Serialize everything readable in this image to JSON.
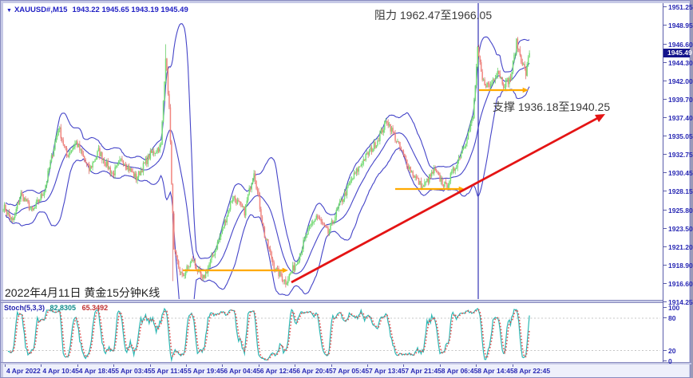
{
  "symbol_bar": {
    "dropdown_icon": "▼",
    "symbol": "XAUUSD#,M15",
    "ohlc_text": "1943.22 1945.65 1943.19 1945.49"
  },
  "annotations": {
    "resistance": "阻力 1962.47至1966.05",
    "support": "支撑 1936.18至1940.25",
    "date_label": "2022年4月11日 黄金15分钟K线"
  },
  "price_axis": {
    "ticks": [
      "1951.25",
      "1948.95",
      "1946.60",
      "1944.30",
      "1942.00",
      "1939.70",
      "1937.40",
      "1935.05",
      "1932.75",
      "1930.45",
      "1928.15",
      "1925.80",
      "1923.50",
      "1921.20",
      "1918.90",
      "1916.60",
      "1914.25"
    ],
    "current": "1945.49"
  },
  "time_axis": {
    "ticks": [
      "4 Apr 2022",
      "4 Apr 10:45",
      "4 Apr 18:45",
      "5 Apr 03:45",
      "5 Apr 11:45",
      "5 Apr 19:45",
      "6 Apr 04:45",
      "6 Apr 12:45",
      "6 Apr 20:45",
      "7 Apr 05:45",
      "7 Apr 13:45",
      "7 Apr 21:45",
      "8 Apr 06:45",
      "8 Apr 14:45",
      "8 Apr 22:45"
    ]
  },
  "stoch": {
    "label": "Stoch(5,3,3)",
    "value_main": "82.8305",
    "value_signal": "65.3492",
    "axis_ticks": [
      "100",
      "80",
      "20",
      "0"
    ],
    "levels": [
      80,
      20
    ]
  },
  "chart_data": {
    "type": "candlestick",
    "title": "XAUUSD#,M15 gold 15-minute chart with Bollinger Bands",
    "current_bar_ohlc": {
      "open": 1943.22,
      "high": 1945.65,
      "low": 1943.19,
      "close": 1945.49
    },
    "ylim": [
      1914.65,
      1952.05
    ],
    "y_ticks": [
      1951.25,
      1948.95,
      1946.6,
      1944.3,
      1942.0,
      1939.7,
      1937.4,
      1935.05,
      1932.75,
      1930.45,
      1928.15,
      1925.8,
      1923.5,
      1921.2,
      1918.9,
      1916.6,
      1914.25
    ],
    "x_ticks": [
      "4 Apr 2022",
      "4 Apr 10:45",
      "4 Apr 18:45",
      "5 Apr 03:45",
      "5 Apr 11:45",
      "5 Apr 19:45",
      "6 Apr 04:45",
      "6 Apr 12:45",
      "6 Apr 20:45",
      "7 Apr 05:45",
      "7 Apr 13:45",
      "7 Apr 21:45",
      "8 Apr 06:45",
      "8 Apr 14:45",
      "8 Apr 22:45"
    ],
    "resistance_zone": [
      1962.47,
      1966.05
    ],
    "support_zone": [
      1936.18,
      1940.25
    ],
    "overlays": [
      "Bollinger Bands 20,2",
      "Stochastic 5,3,3"
    ],
    "num_candles": 448,
    "price_path_anchors": [
      [
        0,
        1926.3
      ],
      [
        8,
        1924.3
      ],
      [
        15,
        1927.8
      ],
      [
        25,
        1925.6
      ],
      [
        35,
        1928.3
      ],
      [
        47,
        1936.3
      ],
      [
        54,
        1932.6
      ],
      [
        62,
        1934.3
      ],
      [
        73,
        1930.8
      ],
      [
        81,
        1933.2
      ],
      [
        93,
        1930.3
      ],
      [
        101,
        1932.2
      ],
      [
        113,
        1929.8
      ],
      [
        125,
        1932.8
      ],
      [
        134,
        1933.8
      ],
      [
        138,
        1945.2
      ],
      [
        141,
        1938.5
      ],
      [
        145,
        1920.5
      ],
      [
        152,
        1917.4
      ],
      [
        161,
        1919.6
      ],
      [
        169,
        1916.9
      ],
      [
        176,
        1919.3
      ],
      [
        185,
        1922.8
      ],
      [
        195,
        1927.6
      ],
      [
        205,
        1925.6
      ],
      [
        213,
        1930.8
      ],
      [
        222,
        1922.6
      ],
      [
        231,
        1918.4
      ],
      [
        240,
        1916.8
      ],
      [
        249,
        1919.2
      ],
      [
        258,
        1922.8
      ],
      [
        266,
        1925.1
      ],
      [
        276,
        1922.9
      ],
      [
        285,
        1926.2
      ],
      [
        296,
        1929.6
      ],
      [
        306,
        1932.1
      ],
      [
        317,
        1934.3
      ],
      [
        326,
        1937.1
      ],
      [
        336,
        1933.9
      ],
      [
        346,
        1930.8
      ],
      [
        356,
        1928.6
      ],
      [
        366,
        1930.7
      ],
      [
        376,
        1928.7
      ],
      [
        385,
        1931.6
      ],
      [
        393,
        1934.6
      ],
      [
        399,
        1937.3
      ],
      [
        403,
        1945.8
      ],
      [
        407,
        1942.0
      ],
      [
        413,
        1941.3
      ],
      [
        420,
        1943.4
      ],
      [
        425,
        1941.6
      ],
      [
        431,
        1942.3
      ],
      [
        436,
        1946.8
      ],
      [
        440,
        1944.8
      ],
      [
        444,
        1942.9
      ],
      [
        447,
        1945.49
      ]
    ],
    "wick_events": [
      [
        138,
        1946.6,
        null
      ],
      [
        144,
        null,
        1916.9
      ]
    ],
    "spike_vline_x": 598,
    "orange_segments": [
      {
        "x1": 228,
        "y1": 338,
        "x2": 360,
        "y2": 338
      },
      {
        "x1": 494,
        "y1": 236,
        "x2": 581,
        "y2": 236
      },
      {
        "x1": 599,
        "y1": 112,
        "x2": 661,
        "y2": 112
      }
    ],
    "trend_arrow": {
      "x1": 364,
      "y1": 353,
      "x2": 757,
      "y2": 142
    },
    "colors": {
      "up_body": "#76e076",
      "up_wick": "#55c855",
      "down_body": "#f2857e",
      "down_wick": "#d85e5e",
      "band": "#4444c8",
      "spike_line": "#3434b4",
      "stoch_main": "#2cb8b4",
      "stoch_signal": "#e05050",
      "level_dash": "#c4c4c4",
      "orange": "#ffaa00",
      "red_arrow": "#e41414",
      "axis_text": "#2828b4",
      "badge_bg": "#14148c"
    }
  }
}
